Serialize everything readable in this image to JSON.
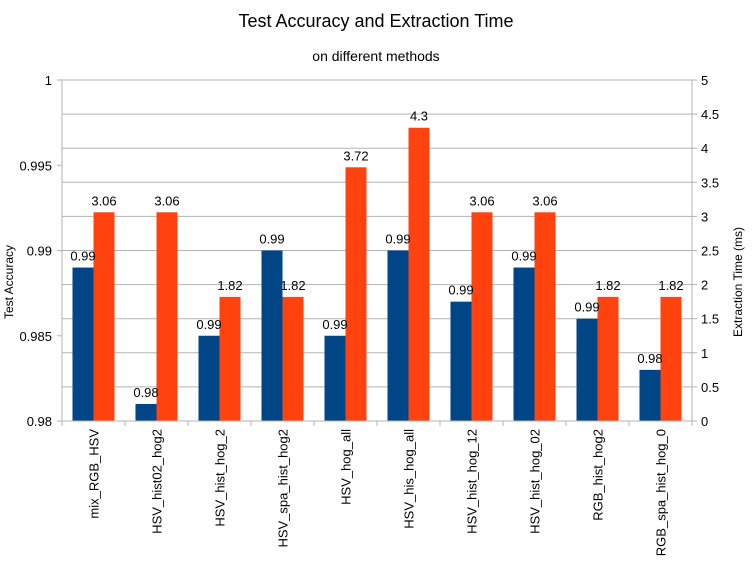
{
  "chart_data": {
    "type": "bar",
    "title": "Test Accuracy and Extraction Time",
    "subtitle": "on different methods",
    "xlabel": "",
    "ylabel": "Test Accuracy",
    "y2label": "Extraction Time (ms)",
    "categories": [
      "mix_RGB_HSV",
      "HSV_hist02_hog2",
      "HSV_hist_hog_2",
      "HSV_spa_hist_hog2",
      "HSV_hog_all",
      "HSV_his_hog_all",
      "HSV_hist_hog_12",
      "HSV_hist_hog_02",
      "RGB_hist_hog2",
      "RGB_spa_hist_hog_0"
    ],
    "series": [
      {
        "axis": "left",
        "color": "#004586",
        "values": [
          0.989,
          0.981,
          0.985,
          0.99,
          0.985,
          0.99,
          0.987,
          0.989,
          0.986,
          0.983
        ],
        "labels": [
          "0.99",
          "0.98",
          "0.99",
          "0.99",
          "0.99",
          "0.99",
          "0.99",
          "0.99",
          "0.99",
          "0.98"
        ]
      },
      {
        "axis": "right",
        "color": "#ff420e",
        "values": [
          3.06,
          3.06,
          1.82,
          1.82,
          3.72,
          4.3,
          3.06,
          3.06,
          1.82,
          1.82
        ],
        "labels": [
          "3.06",
          "3.06",
          "1.82",
          "1.82",
          "3.72",
          "4.3",
          "3.06",
          "3.06",
          "1.82",
          "1.82"
        ]
      }
    ],
    "ylim": [
      0.98,
      1
    ],
    "y2lim": [
      0,
      5
    ],
    "yticks": [
      "0.98",
      "0.985",
      "0.99",
      "0.995",
      "1"
    ],
    "y2ticks": [
      "0",
      "0.5",
      "1",
      "1.5",
      "2",
      "2.5",
      "3",
      "3.5",
      "4",
      "4.5",
      "5"
    ],
    "grid": true,
    "legend": "none"
  }
}
